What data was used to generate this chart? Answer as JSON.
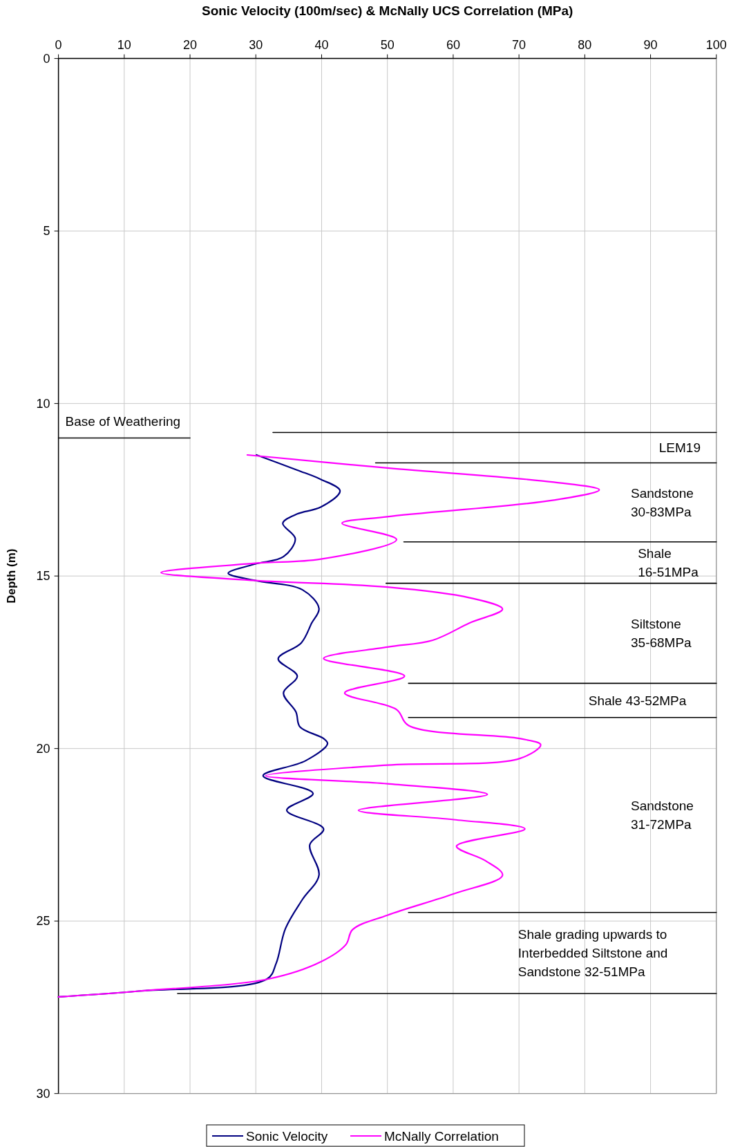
{
  "chart_data": {
    "type": "line",
    "title": "Sonic Velocity (100m/sec) & McNally UCS Correlation (MPa)",
    "ylabel": "Depth (m)",
    "xlim": [
      0,
      100
    ],
    "xticks": [
      0,
      10,
      20,
      30,
      40,
      50,
      60,
      70,
      80,
      90,
      100
    ],
    "ylim": [
      30,
      0
    ],
    "yticks": [
      0,
      5,
      10,
      15,
      20,
      25,
      30
    ],
    "grid": true,
    "legend": "bottom",
    "series": [
      {
        "name": "Sonic Velocity",
        "color": "#000080",
        "x": [
          30.1,
          36.3,
          39.9,
          42.8,
          39.9,
          36.3,
          34.1,
          36.0,
          34.2,
          29.9,
          25.8,
          29.9,
          37.1,
          39.6,
          38.5,
          36.9,
          33.4,
          36.3,
          34.2,
          36.1,
          36.7,
          40.3,
          40.9,
          37.5,
          31.1,
          38.7,
          34.7,
          40.3,
          38.2,
          39.6,
          37.1,
          34.5,
          33.1,
          31.7,
          12.2,
          0
        ],
        "values": [
          11.49,
          11.93,
          12.2,
          12.53,
          13.0,
          13.2,
          13.47,
          13.92,
          14.44,
          14.65,
          14.92,
          15.13,
          15.4,
          15.94,
          16.36,
          16.94,
          17.4,
          17.9,
          18.39,
          18.94,
          19.37,
          19.71,
          19.86,
          20.36,
          20.79,
          21.3,
          21.79,
          22.33,
          22.79,
          23.67,
          24.37,
          25.22,
          26.22,
          26.68,
          27.03,
          27.2
        ]
      },
      {
        "name": "McNally Correlation",
        "color": "#ff00ff",
        "x": [
          28.7,
          50.0,
          75.3,
          82.2,
          75.3,
          50.0,
          43.1,
          51.4,
          39.9,
          29.9,
          15.6,
          29.9,
          50.0,
          62.5,
          67.5,
          62.5,
          56.9,
          50.0,
          40.3,
          52.6,
          43.5,
          51.4,
          53.2,
          70.1,
          73.3,
          70.1,
          50.0,
          31.5,
          50.0,
          65.2,
          45.6,
          60.1,
          70.9,
          60.5,
          64.9,
          67.5,
          60.1,
          50.0,
          44.7,
          43.7,
          39.9,
          31.9,
          12.2,
          0
        ],
        "values": [
          11.49,
          11.87,
          12.28,
          12.5,
          12.8,
          13.28,
          13.47,
          13.94,
          14.51,
          14.63,
          14.9,
          15.13,
          15.32,
          15.63,
          15.96,
          16.36,
          16.86,
          17.06,
          17.39,
          17.9,
          18.39,
          18.87,
          19.33,
          19.71,
          19.89,
          20.29,
          20.48,
          20.79,
          21.02,
          21.33,
          21.79,
          22.06,
          22.33,
          22.83,
          23.25,
          23.67,
          24.21,
          24.83,
          25.25,
          25.68,
          26.18,
          26.68,
          27.03,
          27.2
        ]
      },
      {
        "color": "#000000",
        "x": [
          0,
          20
        ],
        "values": [
          11.0,
          11.0
        ]
      },
      {
        "color": "#000000",
        "x": [
          32.6,
          100
        ],
        "values": [
          10.84,
          10.84
        ]
      },
      {
        "color": "#000000",
        "x": [
          48.2,
          100
        ],
        "values": [
          11.72,
          11.72
        ]
      },
      {
        "color": "#000000",
        "x": [
          52.5,
          100
        ],
        "values": [
          14.01,
          14.01
        ]
      },
      {
        "color": "#000000",
        "x": [
          49.8,
          100
        ],
        "values": [
          15.21,
          15.21
        ]
      },
      {
        "color": "#000000",
        "x": [
          53.2,
          100
        ],
        "values": [
          18.11,
          18.11
        ]
      },
      {
        "color": "#000000",
        "x": [
          53.2,
          100
        ],
        "values": [
          19.1,
          19.1
        ]
      },
      {
        "color": "#000000",
        "x": [
          53.2,
          100
        ],
        "values": [
          24.75,
          24.75
        ]
      },
      {
        "color": "#000000",
        "x": [
          18.1,
          100
        ],
        "values": [
          27.1,
          27.1
        ]
      }
    ],
    "annotations": [
      "Base of Weathering",
      "LEM19",
      "Sandstone\n30-83MPa",
      "Shale\n16-51MPa",
      "Siltstone\n35-68MPa",
      "Shale  43-52MPa",
      "Sandstone\n31-72MPa",
      "Shale grading upwards to\nInterbedded Siltstone and\nSandstone 32-51MPa"
    ]
  }
}
